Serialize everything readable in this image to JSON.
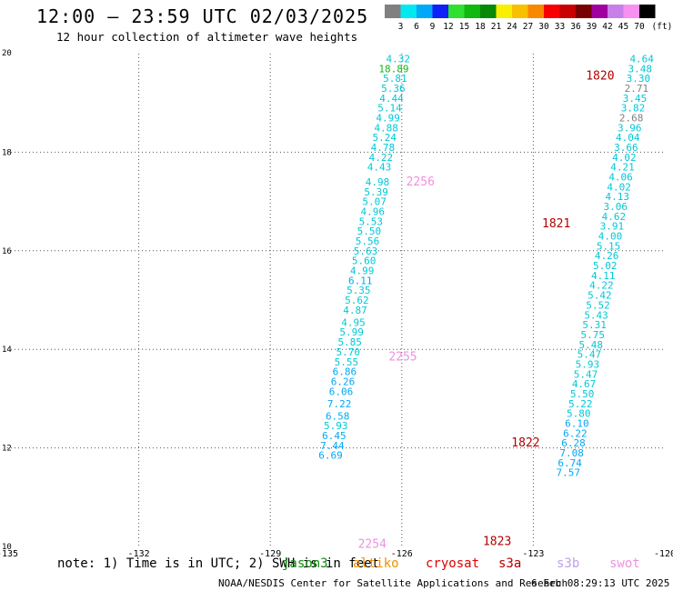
{
  "header": {
    "title": "12:00 – 23:59 UTC 02/03/2025",
    "subtitle": "12 hour collection of altimeter wave heights"
  },
  "colorbar": {
    "unit": "(ft)",
    "ticks": [
      "3",
      "6",
      "9",
      "12",
      "15",
      "18",
      "21",
      "24",
      "27",
      "30",
      "33",
      "36",
      "39",
      "42",
      "45",
      "70"
    ],
    "colors": [
      "#808080",
      "#00e8f0",
      "#00a8f8",
      "#1020f8",
      "#30e030",
      "#10b810",
      "#088a08",
      "#f8f000",
      "#f8c000",
      "#f88800",
      "#f80000",
      "#c80000",
      "#780000",
      "#a000a0",
      "#c880e8",
      "#f890f0",
      "#000000"
    ]
  },
  "footer": {
    "note": "note: 1) Time is in UTC; 2) SWH is in feet",
    "satellites": [
      {
        "name": "jason3",
        "color": "#0a8a0a"
      },
      {
        "name": "altiko",
        "color": "#f09000"
      },
      {
        "name": "cryosat",
        "color": "#e00000"
      },
      {
        "name": "s3a",
        "color": "#b00000"
      },
      {
        "name": "s3b",
        "color": "#c0a0e8"
      },
      {
        "name": "swot",
        "color": "#f090e0"
      }
    ],
    "credit": "NOAA/NESDIS Center for Satellite Applications and Research",
    "timestamp": "6 Feb 08:29:13 UTC 2025"
  },
  "chart_data": {
    "type": "scatter",
    "title": "12:00 – 23:59 UTC 02/03/2025",
    "subtitle": "12 hour collection of altimeter wave heights",
    "xlim": [
      -135,
      -120
    ],
    "ylim": [
      10,
      20
    ],
    "x_ticks": [
      "-135",
      "-132",
      "-129",
      "-126",
      "-123",
      "-120"
    ],
    "y_ticks": [
      "10",
      "12",
      "14",
      "16",
      "18",
      "20"
    ],
    "grid": true,
    "series": [
      {
        "name": "swot",
        "color_key": "swot",
        "time_labels": [
          {
            "text": "2256",
            "x": -125.9,
            "y": 17.4
          },
          {
            "text": "2255",
            "x": -126.3,
            "y": 13.85
          },
          {
            "text": "2254",
            "x": -127.0,
            "y": 10.05
          }
        ],
        "points": [
          {
            "x": -125.81,
            "y": 19.9,
            "v": "4.32",
            "c": "#00c8d8"
          },
          {
            "x": -125.84,
            "y": 19.7,
            "v": "18.89",
            "c": "#10b810"
          },
          {
            "x": -125.88,
            "y": 19.5,
            "v": "5.81",
            "c": "#00c8d8"
          },
          {
            "x": -125.92,
            "y": 19.3,
            "v": "5.36",
            "c": "#00c8d8"
          },
          {
            "x": -125.96,
            "y": 19.1,
            "v": "4.44",
            "c": "#00c8d8"
          },
          {
            "x": -126.0,
            "y": 18.9,
            "v": "5.14",
            "c": "#00c8d8"
          },
          {
            "x": -126.04,
            "y": 18.7,
            "v": "4.99",
            "c": "#00c8d8"
          },
          {
            "x": -126.08,
            "y": 18.5,
            "v": "4.88",
            "c": "#00c8d8"
          },
          {
            "x": -126.12,
            "y": 18.3,
            "v": "5.24",
            "c": "#00c8d8"
          },
          {
            "x": -126.16,
            "y": 18.1,
            "v": "4.78",
            "c": "#00c8d8"
          },
          {
            "x": -126.2,
            "y": 17.9,
            "v": "4.22",
            "c": "#00c8d8"
          },
          {
            "x": -126.24,
            "y": 17.7,
            "v": "4.43",
            "c": "#00c8d8"
          },
          {
            "x": -126.28,
            "y": 17.4,
            "v": "4.98",
            "c": "#00c8d8"
          },
          {
            "x": -126.31,
            "y": 17.2,
            "v": "5.39",
            "c": "#00c8d8"
          },
          {
            "x": -126.35,
            "y": 17.0,
            "v": "5.07",
            "c": "#00c8d8"
          },
          {
            "x": -126.39,
            "y": 16.8,
            "v": "4.96",
            "c": "#00c8d8"
          },
          {
            "x": -126.43,
            "y": 16.6,
            "v": "5.53",
            "c": "#00c8d8"
          },
          {
            "x": -126.47,
            "y": 16.4,
            "v": "5.50",
            "c": "#00c8d8"
          },
          {
            "x": -126.51,
            "y": 16.2,
            "v": "5.56",
            "c": "#00c8d8"
          },
          {
            "x": -126.55,
            "y": 16.0,
            "v": "5.63",
            "c": "#00c8d8"
          },
          {
            "x": -126.59,
            "y": 15.8,
            "v": "5.60",
            "c": "#00c8d8"
          },
          {
            "x": -126.63,
            "y": 15.6,
            "v": "4.99",
            "c": "#00c8d8"
          },
          {
            "x": -126.67,
            "y": 15.4,
            "v": "6.11",
            "c": "#00a8f8"
          },
          {
            "x": -126.71,
            "y": 15.2,
            "v": "5.35",
            "c": "#00c8d8"
          },
          {
            "x": -126.75,
            "y": 15.0,
            "v": "5.62",
            "c": "#00c8d8"
          },
          {
            "x": -126.79,
            "y": 14.8,
            "v": "4.87",
            "c": "#00c8d8"
          },
          {
            "x": -126.83,
            "y": 14.55,
            "v": "4.95",
            "c": "#00c8d8"
          },
          {
            "x": -126.87,
            "y": 14.35,
            "v": "5.99",
            "c": "#00c8d8"
          },
          {
            "x": -126.91,
            "y": 14.15,
            "v": "5.85",
            "c": "#00c8d8"
          },
          {
            "x": -126.95,
            "y": 13.95,
            "v": "5.70",
            "c": "#00c8d8"
          },
          {
            "x": -126.99,
            "y": 13.75,
            "v": "5.55",
            "c": "#00c8d8"
          },
          {
            "x": -127.03,
            "y": 13.55,
            "v": "6.86",
            "c": "#00a8f8"
          },
          {
            "x": -127.07,
            "y": 13.35,
            "v": "6.26",
            "c": "#00a8f8"
          },
          {
            "x": -127.11,
            "y": 13.15,
            "v": "6.06",
            "c": "#00a8f8"
          },
          {
            "x": -127.15,
            "y": 12.9,
            "v": "7.22",
            "c": "#00a8f8"
          },
          {
            "x": -127.19,
            "y": 12.65,
            "v": "6.58",
            "c": "#00a8f8"
          },
          {
            "x": -127.23,
            "y": 12.45,
            "v": "5.93",
            "c": "#00c8d8"
          },
          {
            "x": -127.27,
            "y": 12.25,
            "v": "6.45",
            "c": "#00a8f8"
          },
          {
            "x": -127.31,
            "y": 12.05,
            "v": "7.44",
            "c": "#00a8f8"
          },
          {
            "x": -127.35,
            "y": 11.85,
            "v": "6.69",
            "c": "#00a8f8"
          }
        ]
      },
      {
        "name": "s3a",
        "color_key": "s3a",
        "time_labels": [
          {
            "text": "1820",
            "x": -121.8,
            "y": 19.55
          },
          {
            "text": "1821",
            "x": -122.8,
            "y": 16.55
          },
          {
            "text": "1822",
            "x": -123.5,
            "y": 12.1
          },
          {
            "text": "1823",
            "x": -124.15,
            "y": 10.1
          }
        ],
        "points": [
          {
            "x": -120.25,
            "y": 19.9,
            "v": "4.64",
            "c": "#00c8d8"
          },
          {
            "x": -120.29,
            "y": 19.7,
            "v": "3.48",
            "c": "#00c8d8"
          },
          {
            "x": -120.33,
            "y": 19.5,
            "v": "3.30",
            "c": "#00c8d8"
          },
          {
            "x": -120.37,
            "y": 19.3,
            "v": "2.71",
            "c": "#808080"
          },
          {
            "x": -120.41,
            "y": 19.1,
            "v": "3.45",
            "c": "#00c8d8"
          },
          {
            "x": -120.45,
            "y": 18.9,
            "v": "3.82",
            "c": "#00c8d8"
          },
          {
            "x": -120.49,
            "y": 18.7,
            "v": "2.68",
            "c": "#808080"
          },
          {
            "x": -120.53,
            "y": 18.5,
            "v": "3.96",
            "c": "#00c8d8"
          },
          {
            "x": -120.57,
            "y": 18.3,
            "v": "4.04",
            "c": "#00c8d8"
          },
          {
            "x": -120.61,
            "y": 18.1,
            "v": "3.66",
            "c": "#00c8d8"
          },
          {
            "x": -120.65,
            "y": 17.9,
            "v": "4.02",
            "c": "#00c8d8"
          },
          {
            "x": -120.69,
            "y": 17.7,
            "v": "4.21",
            "c": "#00c8d8"
          },
          {
            "x": -120.73,
            "y": 17.5,
            "v": "4.06",
            "c": "#00c8d8"
          },
          {
            "x": -120.77,
            "y": 17.3,
            "v": "4.02",
            "c": "#00c8d8"
          },
          {
            "x": -120.81,
            "y": 17.1,
            "v": "4.13",
            "c": "#00c8d8"
          },
          {
            "x": -120.85,
            "y": 16.9,
            "v": "3.06",
            "c": "#00c8d8"
          },
          {
            "x": -120.89,
            "y": 16.7,
            "v": "4.62",
            "c": "#00c8d8"
          },
          {
            "x": -120.93,
            "y": 16.5,
            "v": "3.91",
            "c": "#00c8d8"
          },
          {
            "x": -120.97,
            "y": 16.3,
            "v": "4.00",
            "c": "#00c8d8"
          },
          {
            "x": -121.01,
            "y": 16.1,
            "v": "5.15",
            "c": "#00c8d8"
          },
          {
            "x": -121.05,
            "y": 15.9,
            "v": "4.26",
            "c": "#00c8d8"
          },
          {
            "x": -121.09,
            "y": 15.7,
            "v": "5.02",
            "c": "#00c8d8"
          },
          {
            "x": -121.13,
            "y": 15.5,
            "v": "4.11",
            "c": "#00c8d8"
          },
          {
            "x": -121.17,
            "y": 15.3,
            "v": "4.22",
            "c": "#00c8d8"
          },
          {
            "x": -121.21,
            "y": 15.1,
            "v": "5.42",
            "c": "#00c8d8"
          },
          {
            "x": -121.25,
            "y": 14.9,
            "v": "5.52",
            "c": "#00c8d8"
          },
          {
            "x": -121.29,
            "y": 14.7,
            "v": "5.43",
            "c": "#00c8d8"
          },
          {
            "x": -121.33,
            "y": 14.5,
            "v": "5.31",
            "c": "#00c8d8"
          },
          {
            "x": -121.37,
            "y": 14.3,
            "v": "5.75",
            "c": "#00c8d8"
          },
          {
            "x": -121.41,
            "y": 14.1,
            "v": "5.48",
            "c": "#00c8d8"
          },
          {
            "x": -121.45,
            "y": 13.9,
            "v": "5.47",
            "c": "#00c8d8"
          },
          {
            "x": -121.49,
            "y": 13.7,
            "v": "5.93",
            "c": "#00c8d8"
          },
          {
            "x": -121.53,
            "y": 13.5,
            "v": "5.47",
            "c": "#00c8d8"
          },
          {
            "x": -121.57,
            "y": 13.3,
            "v": "4.67",
            "c": "#00c8d8"
          },
          {
            "x": -121.61,
            "y": 13.1,
            "v": "5.50",
            "c": "#00c8d8"
          },
          {
            "x": -121.65,
            "y": 12.9,
            "v": "5.22",
            "c": "#00c8d8"
          },
          {
            "x": -121.69,
            "y": 12.7,
            "v": "5.80",
            "c": "#00c8d8"
          },
          {
            "x": -121.73,
            "y": 12.5,
            "v": "6.10",
            "c": "#00a8f8"
          },
          {
            "x": -121.77,
            "y": 12.3,
            "v": "6.22",
            "c": "#00a8f8"
          },
          {
            "x": -121.81,
            "y": 12.1,
            "v": "6.28",
            "c": "#00a8f8"
          },
          {
            "x": -121.85,
            "y": 11.9,
            "v": "7.08",
            "c": "#00a8f8"
          },
          {
            "x": -121.89,
            "y": 11.7,
            "v": "6.74",
            "c": "#00a8f8"
          },
          {
            "x": -121.93,
            "y": 11.5,
            "v": "7.57",
            "c": "#00a8f8"
          }
        ]
      }
    ]
  }
}
